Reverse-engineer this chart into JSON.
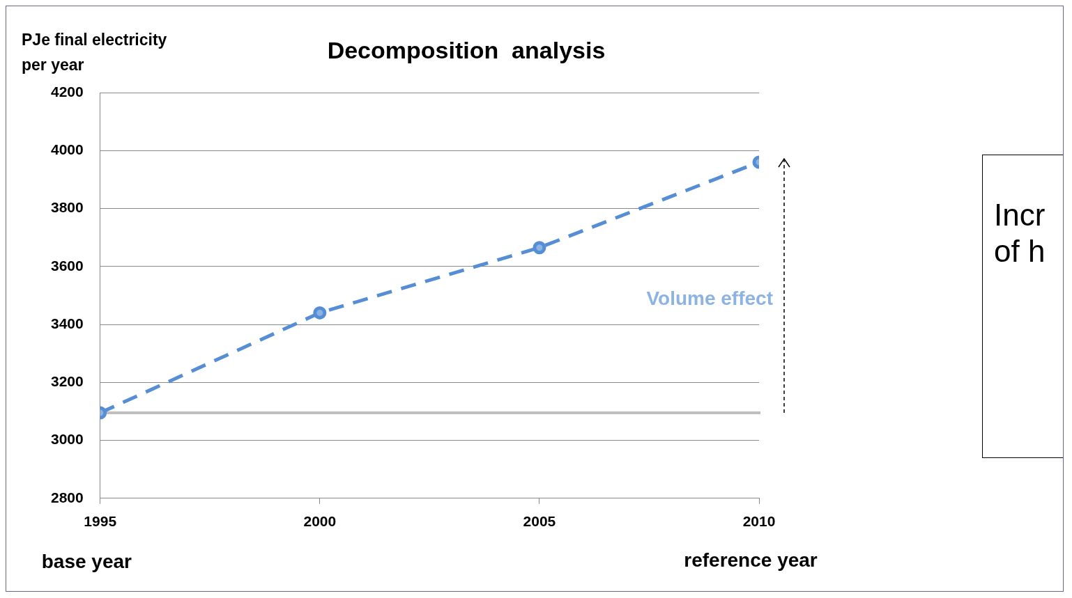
{
  "chart_data": {
    "type": "line",
    "title": "Decomposition  analysis",
    "ylabel": "PJe final electricity per year",
    "x": [
      1995,
      2000,
      2005,
      2010
    ],
    "series": [
      {
        "color": "#558ed5",
        "values": [
          3095,
          3440,
          3665,
          3960
        ]
      }
    ],
    "xlim": [
      1995,
      2010
    ],
    "xticks": [
      1995,
      2000,
      2005,
      2010
    ],
    "ylim": [
      2800,
      4200
    ],
    "yticks": [
      2800,
      3000,
      3200,
      3400,
      3600,
      3800,
      4000,
      4200
    ],
    "grid": "y",
    "legend": false,
    "marker": "circle",
    "line_style": "dashed",
    "ref_lines": [
      {
        "axis": "y",
        "value": 3095,
        "color": "#bfbfbf"
      }
    ],
    "annotations": [
      "Volume effect",
      "base year",
      "reference year",
      "Incr",
      "of h"
    ]
  }
}
